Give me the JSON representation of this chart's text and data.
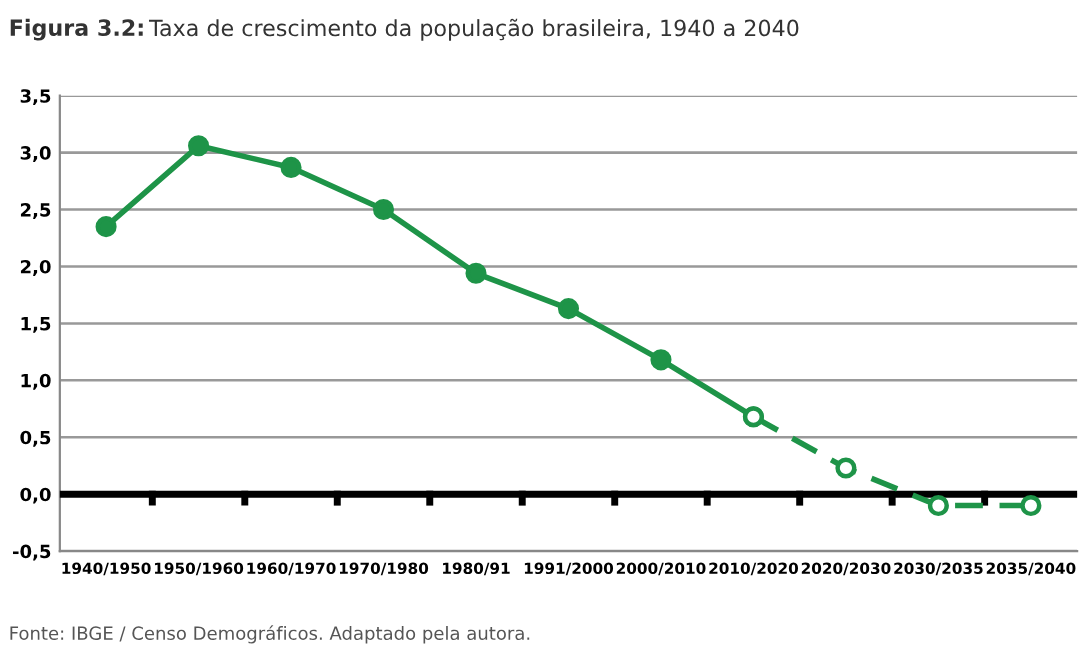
{
  "chart_data": {
    "type": "line",
    "title": "Figura 3.2: Taxa de crescimento da população brasileira, 1940 a 2040",
    "categories": [
      "1940/1950",
      "1950/1960",
      "1960/1970",
      "1970/1980",
      "1980/91",
      "1991/2000",
      "2000/2010",
      "2010/2020",
      "2020/2030",
      "2030/2035",
      "2035/2040"
    ],
    "series": [
      {
        "color": "#1e9448",
        "line_style": "solid",
        "marker": "circle",
        "values": [
          2.35,
          3.06,
          2.87,
          2.5,
          1.94,
          1.63,
          1.18,
          0.68,
          null,
          null,
          null
        ]
      },
      {
        "color": "#1e9448",
        "line_style": "dashed",
        "marker": "circle",
        "values": [
          null,
          null,
          null,
          null,
          null,
          null,
          null,
          0.68,
          0.23,
          -0.1,
          -0.1
        ]
      }
    ],
    "ylim": [
      -0.5,
      3.5
    ],
    "yticks": [
      {
        "value": -0.5,
        "label": "-0,5"
      },
      {
        "value": 0,
        "label": "0,0"
      },
      {
        "value": 0.5,
        "label": "0,5"
      },
      {
        "value": 1,
        "label": "1,0"
      },
      {
        "value": 1.5,
        "label": "1,5"
      },
      {
        "value": 2,
        "label": "2,0"
      },
      {
        "value": 2.5,
        "label": "2,5"
      },
      {
        "value": 3,
        "label": "3,0"
      },
      {
        "value": 3.5,
        "label": "3,5"
      }
    ],
    "grid": "y",
    "legend": false,
    "ref_lines": [
      {
        "axis": "y",
        "value": 0,
        "color": "#000000"
      }
    ],
    "annotations": [
      "Fonte: IBGE / Censo Demográficos. Adaptado pela autora."
    ]
  }
}
